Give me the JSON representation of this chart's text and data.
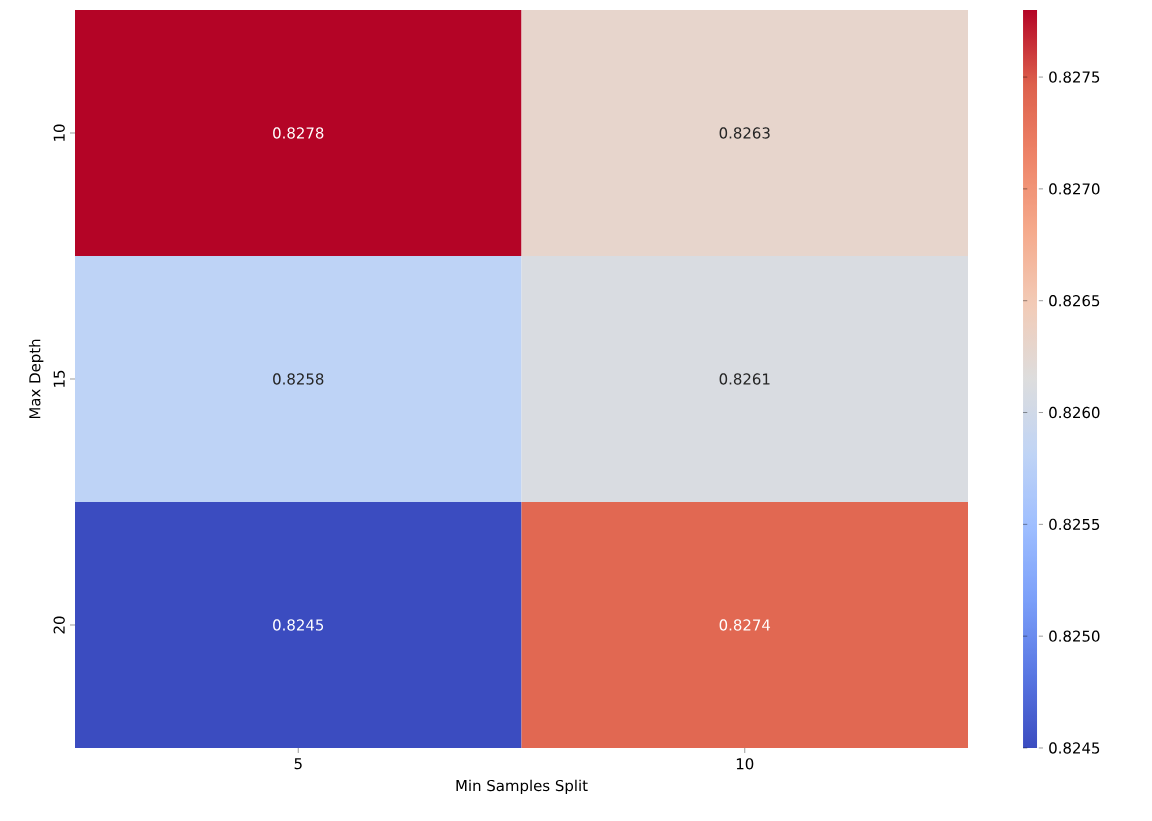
{
  "chart_data": {
    "type": "heatmap",
    "xlabel": "Min Samples Split",
    "ylabel": "Max Depth",
    "categories": [
      "5",
      "10"
    ],
    "y_categories": [
      "10",
      "15",
      "20"
    ],
    "cells": [
      [
        0.8278,
        0.8263
      ],
      [
        0.8258,
        0.8261
      ],
      [
        0.8245,
        0.8274
      ]
    ],
    "data_labels": true,
    "clim": [
      0.8245,
      0.8278
    ],
    "cticks": [
      0.8245,
      {
        "value": 0.825,
        "label": "0.8250"
      },
      0.8255,
      {
        "value": 0.826,
        "label": "0.8260"
      },
      0.8265,
      {
        "value": 0.827,
        "label": "0.8270"
      },
      0.8275
    ]
  }
}
